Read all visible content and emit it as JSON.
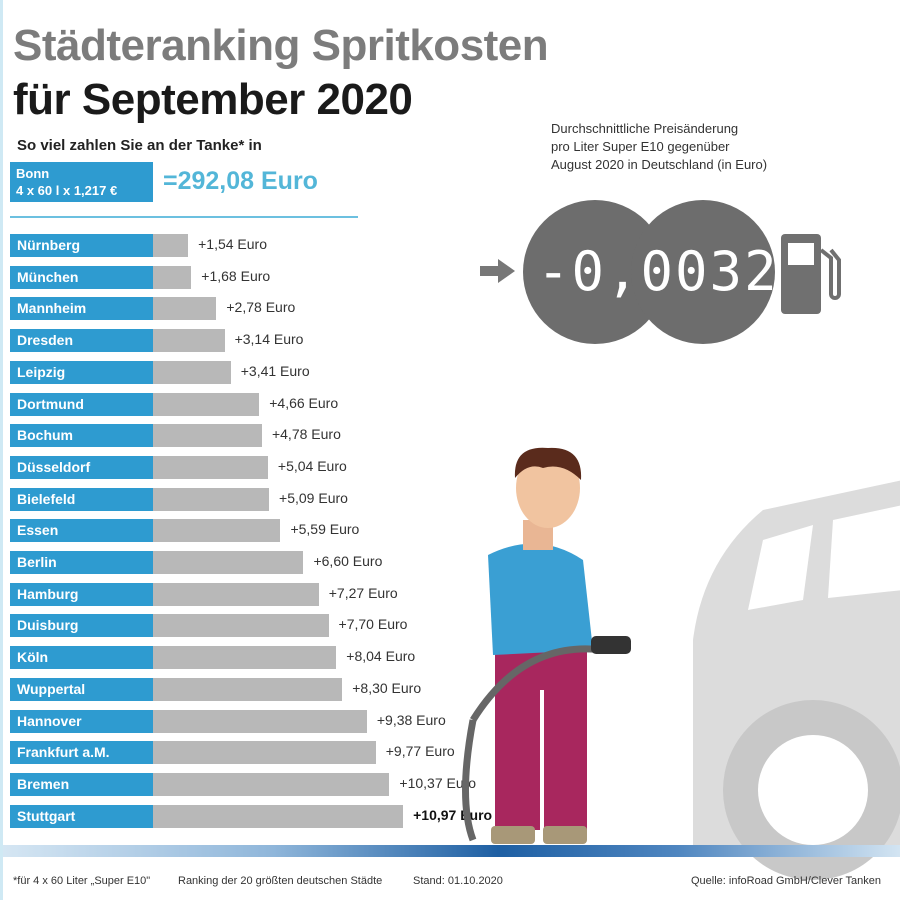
{
  "title_line1": "Städteranking Spritkosten",
  "title_line2": "für September 2020",
  "subtitle": "So viel zahlen Sie an der Tanke* in",
  "reference": {
    "city": "Bonn",
    "formula": "4 x 60 l x 1,217 €",
    "total": "=292,08 Euro"
  },
  "price_change": {
    "note_lines": [
      "Durchschnittliche Preisänderung",
      "pro Liter Super E10 gegenüber",
      "August 2020 in Deutschland (in Euro)"
    ],
    "value": "-0,0032"
  },
  "footer": {
    "footnote": "*für 4 x 60 Liter „Super E10\"",
    "ranking": "Ranking der 20 größten deutschen Städte",
    "date": "Stand: 01.10.2020",
    "source": "Quelle: infoRoad GmbH/Clever Tanken"
  },
  "colors": {
    "label_bar": "#2e9bd0",
    "value_bar": "#b8b8b8",
    "total": "#53b6d8"
  },
  "chart_data": {
    "type": "bar",
    "orientation": "horizontal",
    "categories": [
      "Nürnberg",
      "München",
      "Mannheim",
      "Dresden",
      "Leipzig",
      "Dortmund",
      "Bochum",
      "Düsseldorf",
      "Bielefeld",
      "Essen",
      "Berlin",
      "Hamburg",
      "Duisburg",
      "Köln",
      "Wuppertal",
      "Hannover",
      "Frankfurt a.M.",
      "Bremen",
      "Stuttgart"
    ],
    "values": [
      1.54,
      1.68,
      2.78,
      3.14,
      3.41,
      4.66,
      4.78,
      5.04,
      5.09,
      5.59,
      6.6,
      7.27,
      7.7,
      8.04,
      8.3,
      9.38,
      9.77,
      10.37,
      10.97
    ],
    "labels": [
      "+1,54 Euro",
      "+1,68 Euro",
      "+2,78 Euro",
      "+3,14 Euro",
      "+3,41 Euro",
      "+4,66 Euro",
      "+4,78 Euro",
      "+5,04 Euro",
      "+5,09 Euro",
      "+5,59 Euro",
      "+6,60 Euro",
      "+7,27 Euro",
      "+7,70 Euro",
      "+8,04 Euro",
      "+8,30 Euro",
      "+9,38 Euro",
      "+9,77 Euro",
      "+10,37 Euro",
      "+10,97 Euro"
    ],
    "unit": "Euro"
  }
}
